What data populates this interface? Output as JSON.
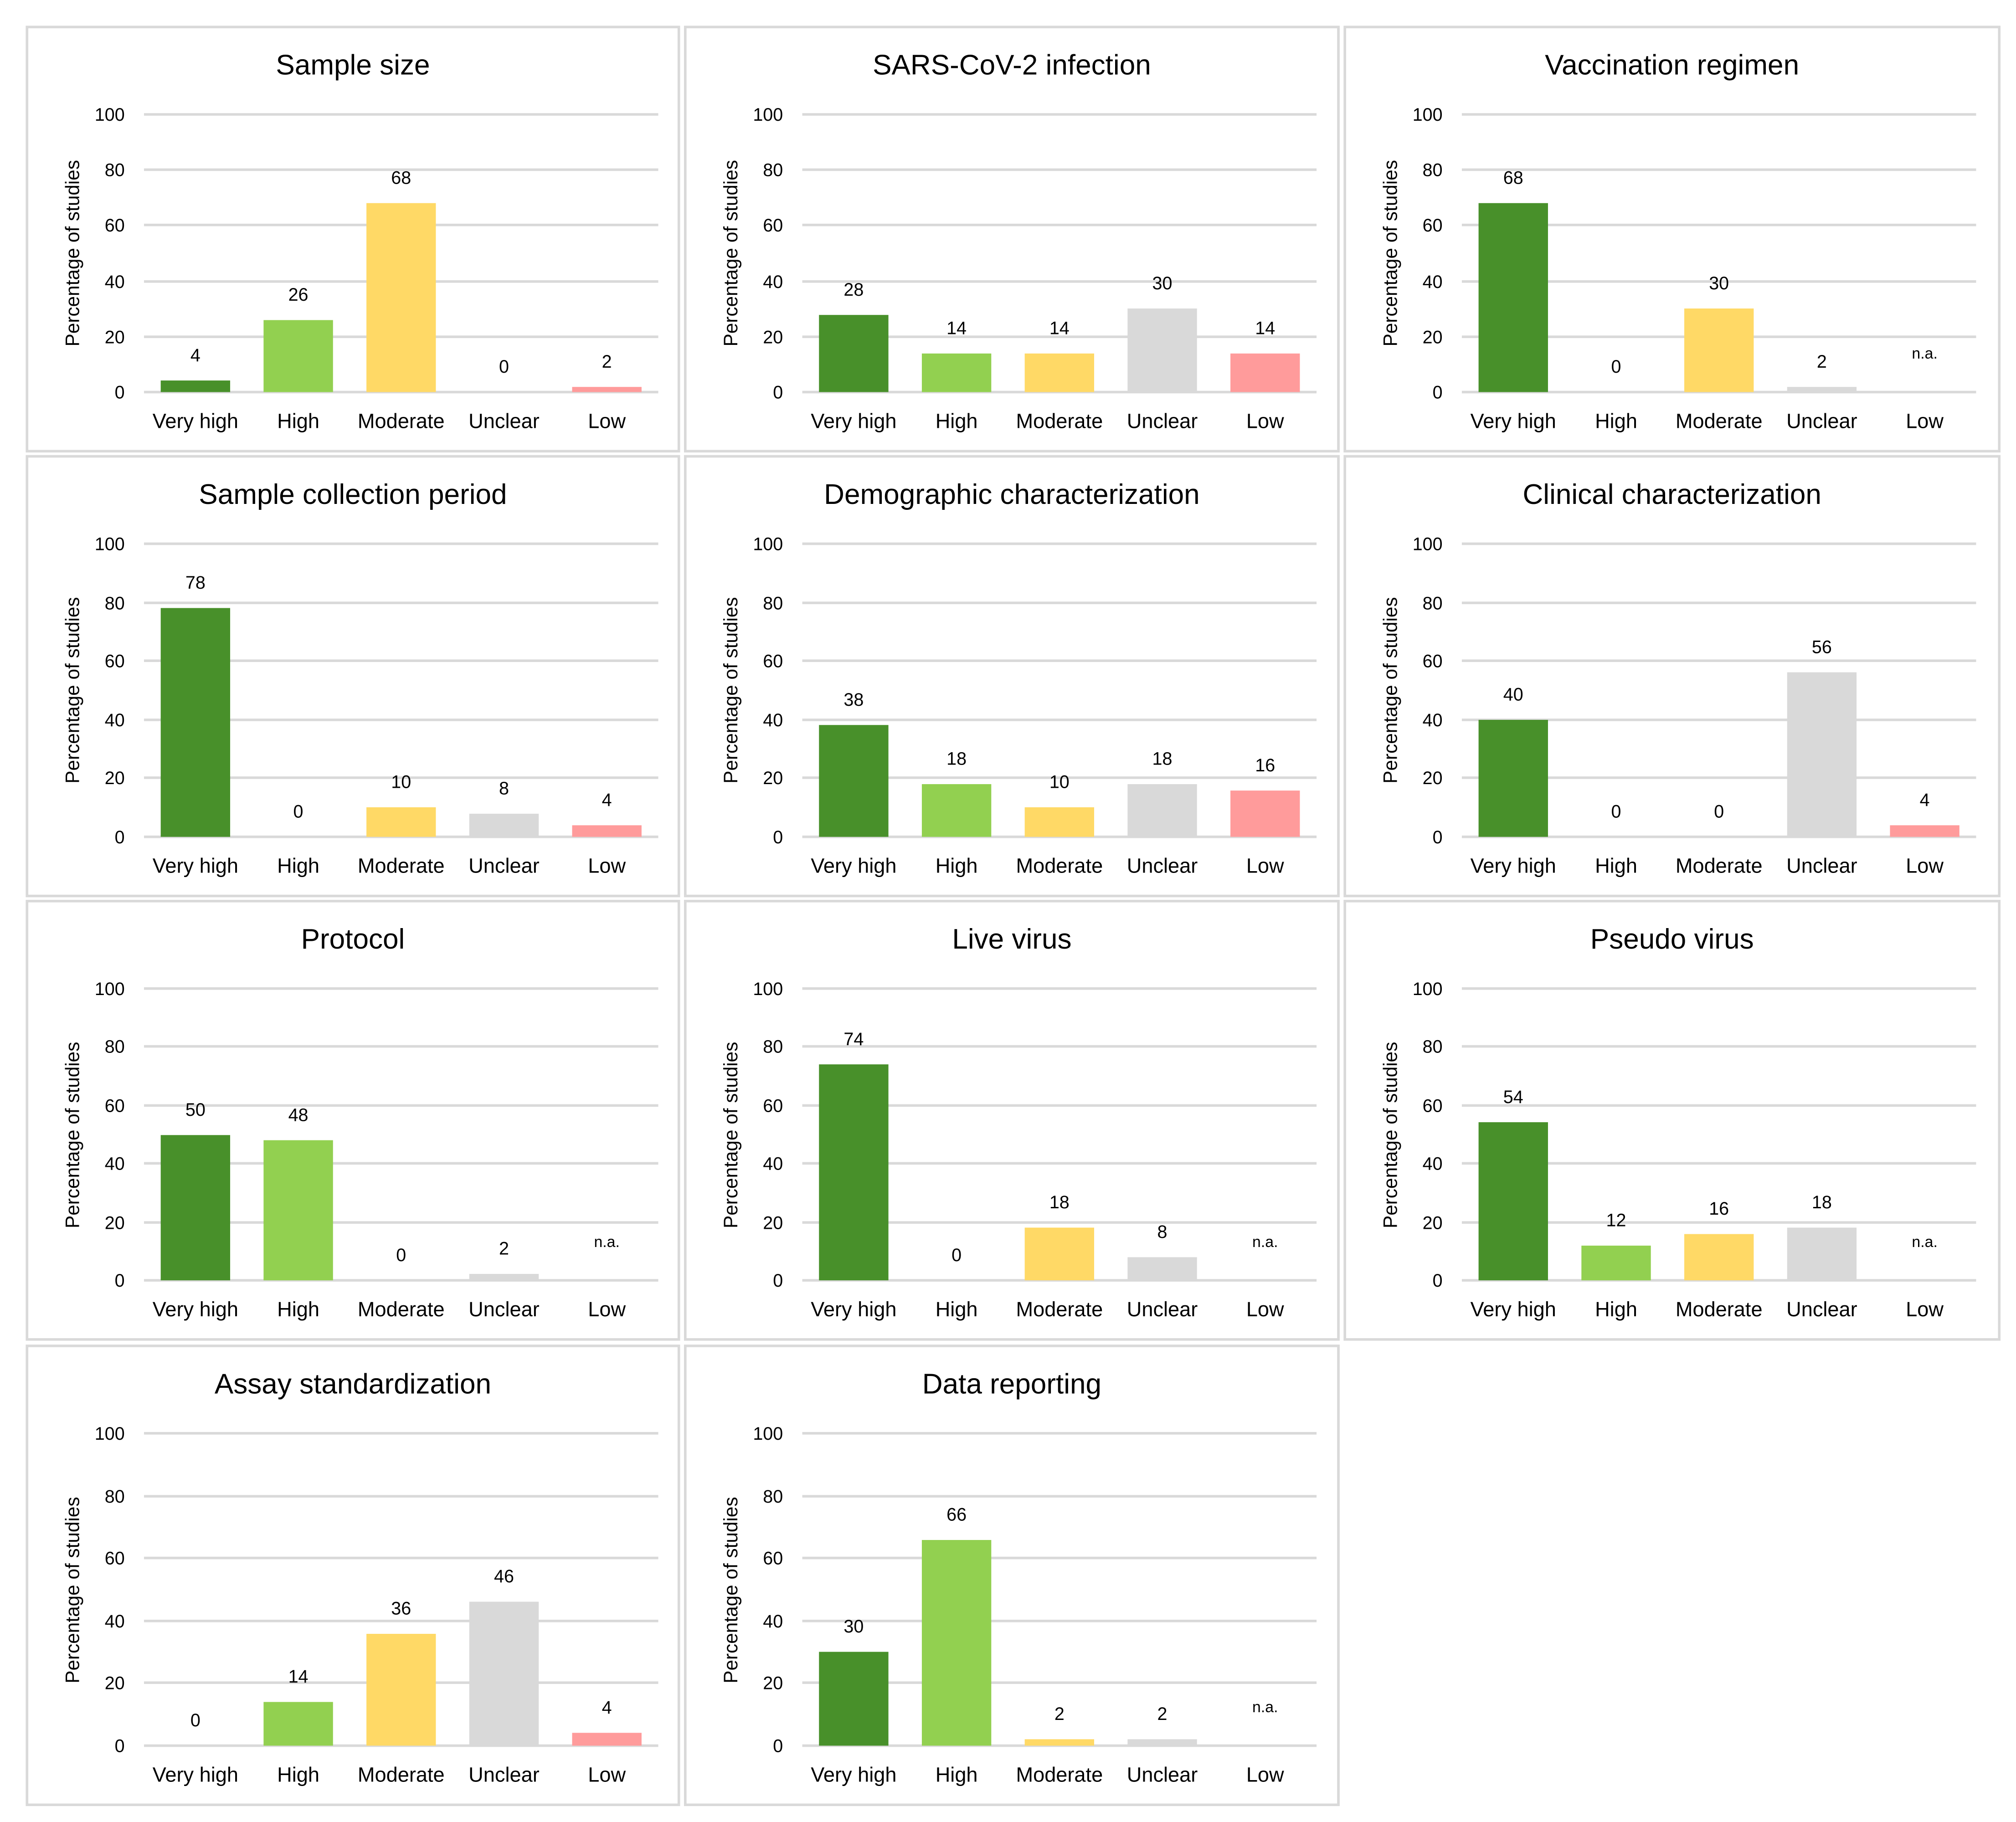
{
  "chart_data": [
    {
      "type": "bar",
      "title": "Sample size",
      "ylabel": "Percentage of studies",
      "ylim": [
        0,
        100
      ],
      "yticks": [
        "0",
        "20",
        "40",
        "60",
        "80",
        "100"
      ],
      "categories": [
        "Very high",
        "High",
        "Moderate",
        "Unclear",
        "Low"
      ],
      "values": [
        4,
        26,
        68,
        0,
        2
      ],
      "labels": [
        "4",
        "26",
        "68",
        "0",
        "2"
      ]
    },
    {
      "type": "bar",
      "title": "SARS-CoV-2 infection",
      "ylabel": "Percentage of studies",
      "ylim": [
        0,
        100
      ],
      "yticks": [
        "0",
        "20",
        "40",
        "60",
        "80",
        "100"
      ],
      "categories": [
        "Very high",
        "High",
        "Moderate",
        "Unclear",
        "Low"
      ],
      "values": [
        28,
        14,
        14,
        30,
        14
      ],
      "labels": [
        "28",
        "14",
        "14",
        "30",
        "14"
      ]
    },
    {
      "type": "bar",
      "title": "Vaccination regimen",
      "ylabel": "Percentage of studies",
      "ylim": [
        0,
        100
      ],
      "yticks": [
        "0",
        "20",
        "40",
        "60",
        "80",
        "100"
      ],
      "categories": [
        "Very high",
        "High",
        "Moderate",
        "Unclear",
        "Low"
      ],
      "values": [
        68,
        0,
        30,
        2,
        null
      ],
      "labels": [
        "68",
        "0",
        "30",
        "2",
        "n.a."
      ]
    },
    {
      "type": "bar",
      "title": "Sample collection period",
      "ylabel": "Percentage of studies",
      "ylim": [
        0,
        100
      ],
      "yticks": [
        "0",
        "20",
        "40",
        "60",
        "80",
        "100"
      ],
      "categories": [
        "Very high",
        "High",
        "Moderate",
        "Unclear",
        "Low"
      ],
      "values": [
        78,
        0,
        10,
        8,
        4
      ],
      "labels": [
        "78",
        "0",
        "10",
        "8",
        "4"
      ]
    },
    {
      "type": "bar",
      "title": "Demographic characterization",
      "ylabel": "Percentage of studies",
      "ylim": [
        0,
        100
      ],
      "yticks": [
        "0",
        "20",
        "40",
        "60",
        "80",
        "100"
      ],
      "categories": [
        "Very high",
        "High",
        "Moderate",
        "Unclear",
        "Low"
      ],
      "values": [
        38,
        18,
        10,
        18,
        16
      ],
      "labels": [
        "38",
        "18",
        "10",
        "18",
        "16"
      ]
    },
    {
      "type": "bar",
      "title": "Clinical characterization",
      "ylabel": "Percentage of studies",
      "ylim": [
        0,
        100
      ],
      "yticks": [
        "0",
        "20",
        "40",
        "60",
        "80",
        "100"
      ],
      "categories": [
        "Very high",
        "High",
        "Moderate",
        "Unclear",
        "Low"
      ],
      "values": [
        40,
        0,
        0,
        56,
        4
      ],
      "labels": [
        "40",
        "0",
        "0",
        "56",
        "4"
      ]
    },
    {
      "type": "bar",
      "title": "Protocol",
      "ylabel": "Percentage of studies",
      "ylim": [
        0,
        100
      ],
      "yticks": [
        "0",
        "20",
        "40",
        "60",
        "80",
        "100"
      ],
      "categories": [
        "Very high",
        "High",
        "Moderate",
        "Unclear",
        "Low"
      ],
      "values": [
        50,
        48,
        0,
        2,
        null
      ],
      "labels": [
        "50",
        "48",
        "0",
        "2",
        "n.a."
      ]
    },
    {
      "type": "bar",
      "title": "Live virus",
      "ylabel": "Percentage of studies",
      "ylim": [
        0,
        100
      ],
      "yticks": [
        "0",
        "20",
        "40",
        "60",
        "80",
        "100"
      ],
      "categories": [
        "Very high",
        "High",
        "Moderate",
        "Unclear",
        "Low"
      ],
      "values": [
        74,
        0,
        18,
        8,
        null
      ],
      "labels": [
        "74",
        "0",
        "18",
        "8",
        "n.a."
      ]
    },
    {
      "type": "bar",
      "title": "Pseudo virus",
      "ylabel": "Percentage of studies",
      "ylim": [
        0,
        100
      ],
      "yticks": [
        "0",
        "20",
        "40",
        "60",
        "80",
        "100"
      ],
      "categories": [
        "Very high",
        "High",
        "Moderate",
        "Unclear",
        "Low"
      ],
      "values": [
        54,
        12,
        16,
        18,
        null
      ],
      "labels": [
        "54",
        "12",
        "16",
        "18",
        "n.a."
      ]
    },
    {
      "type": "bar",
      "title": "Assay standardization",
      "ylabel": "Percentage of studies",
      "ylim": [
        0,
        100
      ],
      "yticks": [
        "0",
        "20",
        "40",
        "60",
        "80",
        "100"
      ],
      "categories": [
        "Very high",
        "High",
        "Moderate",
        "Unclear",
        "Low"
      ],
      "values": [
        0,
        14,
        36,
        46,
        4
      ],
      "labels": [
        "0",
        "14",
        "36",
        "46",
        "4"
      ]
    },
    {
      "type": "bar",
      "title": "Data reporting",
      "ylabel": "Percentage of studies",
      "ylim": [
        0,
        100
      ],
      "yticks": [
        "0",
        "20",
        "40",
        "60",
        "80",
        "100"
      ],
      "categories": [
        "Very high",
        "High",
        "Moderate",
        "Unclear",
        "Low"
      ],
      "values": [
        30,
        66,
        2,
        2,
        null
      ],
      "labels": [
        "30",
        "66",
        "2",
        "2",
        "n.a."
      ]
    }
  ],
  "colors": {
    "Very high": "#48902A",
    "High": "#92D050",
    "Moderate": "#FFD966",
    "Unclear": "#D9D9D9",
    "Low": "#FF9B9B",
    "grid": "#D9D9D9"
  }
}
